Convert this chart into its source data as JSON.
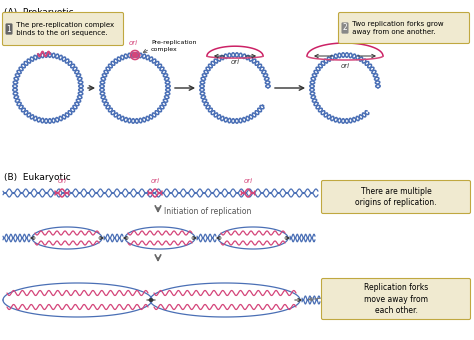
{
  "bg_color": "#ffffff",
  "dna_blue": "#4a6fb5",
  "dna_pink": "#d4457a",
  "arrow_color": "#333333",
  "callout_bg": "#f0ead0",
  "callout_border": "#c0a840",
  "section_A_label": "(A)  Prokaryotic",
  "section_B_label": "(B)  Eukaryotic",
  "callout1_num": "1",
  "callout1_text": " The pre-replication complex\n binds to the ori sequence.",
  "callout2_num": "2",
  "callout2_text": " Two replication forks grow\n away from one another.",
  "callout3_text": "There are multiple\norigins of replication.",
  "callout4_text": "Replication forks\nmove away from\neach other.",
  "label_ori": "ori",
  "label_prereplication": "Pre-replication\ncomplex",
  "label_initiation": "Initiation of replication",
  "figsize": [
    4.74,
    3.4
  ],
  "dpi": 100
}
